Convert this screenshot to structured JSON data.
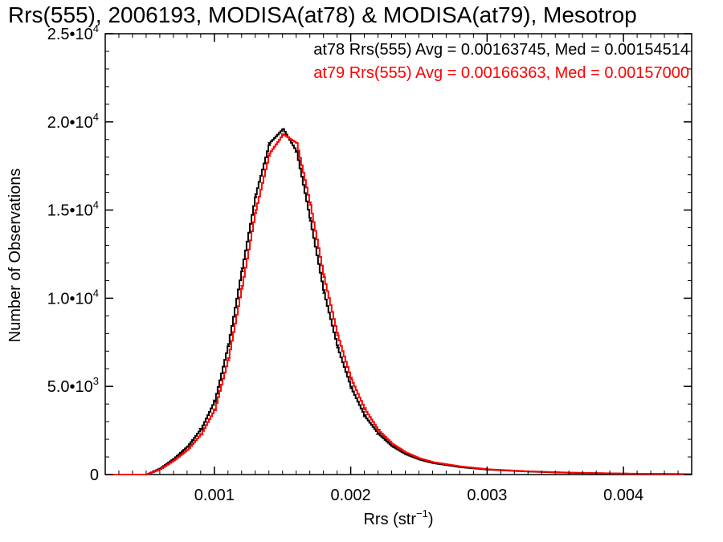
{
  "chart_data": {
    "type": "line",
    "title": "Rrs(555), 2006193, MODISA(at78) & MODISA(at79), Mesotrop",
    "xlabel": "Rrs (str",
    "xlabel_exp": "−1",
    "xlabel_close": ")",
    "ylabel": "Number of Observations",
    "xlim": [
      0.0002,
      0.0045
    ],
    "ylim": [
      0,
      25000
    ],
    "x_ticks": [
      {
        "value": 0.001,
        "label": "0.001"
      },
      {
        "value": 0.002,
        "label": "0.002"
      },
      {
        "value": 0.003,
        "label": "0.003"
      },
      {
        "value": 0.004,
        "label": "0.004"
      }
    ],
    "y_ticks": [
      {
        "value": 0,
        "mant": "0",
        "exp": ""
      },
      {
        "value": 5000,
        "mant": "5.0•10",
        "exp": "3"
      },
      {
        "value": 10000,
        "mant": "1.0•10",
        "exp": "4"
      },
      {
        "value": 15000,
        "mant": "1.5•10",
        "exp": "4"
      },
      {
        "value": 20000,
        "mant": "2.0•10",
        "exp": "4"
      },
      {
        "value": 25000,
        "mant": "2.5•10",
        "exp": "4"
      }
    ],
    "annotations": [
      "at78 Rrs(555) Avg = 0.00163745, Med = 0.00154514",
      "at79 Rrs(555) Avg = 0.00166363, Med = 0.00157000"
    ],
    "series": [
      {
        "name": "at78",
        "color": "#000000",
        "style": "step",
        "points": [
          [
            0.0002,
            0
          ],
          [
            0.0005,
            0
          ],
          [
            0.0006,
            350
          ],
          [
            0.0007,
            900
          ],
          [
            0.0008,
            1600
          ],
          [
            0.0009,
            2600
          ],
          [
            0.001,
            4200
          ],
          [
            0.0011,
            7400
          ],
          [
            0.0012,
            11700
          ],
          [
            0.0013,
            15900
          ],
          [
            0.0014,
            18800
          ],
          [
            0.0015,
            19600
          ],
          [
            0.0016,
            18300
          ],
          [
            0.0017,
            14400
          ],
          [
            0.0018,
            10300
          ],
          [
            0.0019,
            7200
          ],
          [
            0.002,
            4900
          ],
          [
            0.0021,
            3300
          ],
          [
            0.0022,
            2300
          ],
          [
            0.0023,
            1600
          ],
          [
            0.0024,
            1150
          ],
          [
            0.0025,
            850
          ],
          [
            0.0026,
            650
          ],
          [
            0.0028,
            420
          ],
          [
            0.003,
            280
          ],
          [
            0.0033,
            170
          ],
          [
            0.0036,
            100
          ],
          [
            0.004,
            50
          ],
          [
            0.0045,
            20
          ]
        ]
      },
      {
        "name": "at79",
        "color": "#ff0000",
        "style": "step",
        "points": [
          [
            0.0002,
            0
          ],
          [
            0.0005,
            0
          ],
          [
            0.0006,
            300
          ],
          [
            0.0007,
            800
          ],
          [
            0.0008,
            1400
          ],
          [
            0.0009,
            2300
          ],
          [
            0.001,
            3700
          ],
          [
            0.0011,
            6600
          ],
          [
            0.0012,
            10700
          ],
          [
            0.0013,
            15000
          ],
          [
            0.0014,
            18200
          ],
          [
            0.0015,
            19300
          ],
          [
            0.0016,
            18800
          ],
          [
            0.0017,
            15300
          ],
          [
            0.0018,
            11200
          ],
          [
            0.0019,
            7900
          ],
          [
            0.002,
            5400
          ],
          [
            0.0021,
            3700
          ],
          [
            0.0022,
            2500
          ],
          [
            0.0023,
            1750
          ],
          [
            0.0024,
            1250
          ],
          [
            0.0025,
            920
          ],
          [
            0.0026,
            700
          ],
          [
            0.0028,
            460
          ],
          [
            0.003,
            300
          ],
          [
            0.0033,
            180
          ],
          [
            0.0036,
            110
          ],
          [
            0.004,
            55
          ],
          [
            0.0045,
            22
          ]
        ]
      }
    ]
  }
}
